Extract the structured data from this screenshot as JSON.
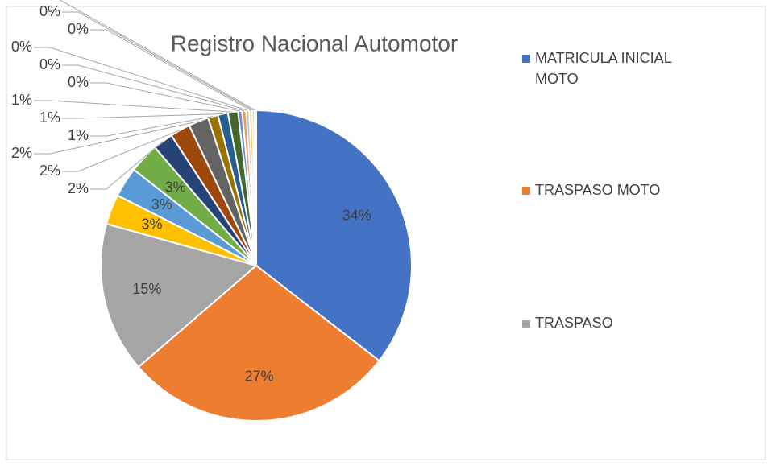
{
  "chart_data": {
    "type": "pie",
    "title": "Registro Nacional Automotor",
    "categories": [
      "MATRICULA INICIAL MOTO",
      "TRASPASO MOTO",
      "TRASPASO",
      null,
      null,
      null,
      null,
      null,
      null,
      null,
      null,
      null,
      null,
      null,
      null,
      null,
      null,
      null
    ],
    "values": [
      34,
      27,
      15,
      3,
      3,
      3,
      2,
      2,
      2,
      1,
      1,
      1,
      0.4,
      0.4,
      0.3,
      0.3,
      0.2,
      0.2
    ],
    "value_labels": [
      "34%",
      "27%",
      "15%",
      "3%",
      "3%",
      "3%",
      "2%",
      "2%",
      "2%",
      "1%",
      "1%",
      "1%",
      "0%",
      "0%",
      "0%",
      "0%",
      "0%",
      "0%"
    ],
    "colors": [
      "#4472c4",
      "#ed7d31",
      "#a5a5a5",
      "#ffc000",
      "#5b9bd5",
      "#70ad47",
      "#264478",
      "#9e480e",
      "#636363",
      "#997300",
      "#255e91",
      "#43682b",
      "#698ed0",
      "#f1975a",
      "#b7b7b7",
      "#ffcd33",
      "#7cafdd",
      "#8cc168"
    ],
    "legend": "right"
  }
}
